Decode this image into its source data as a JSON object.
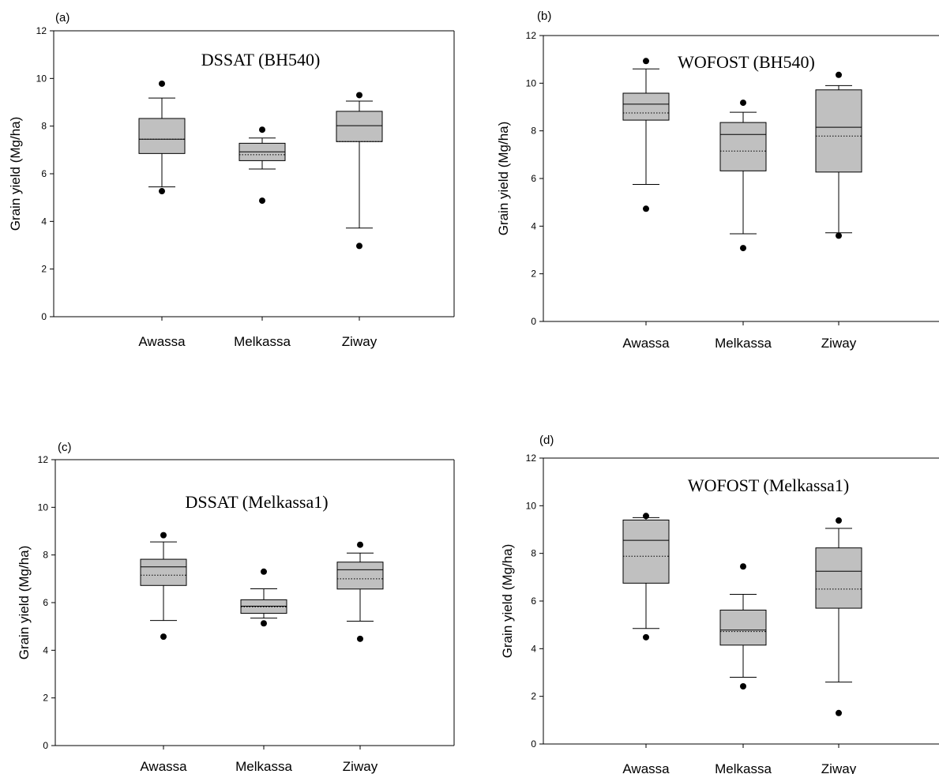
{
  "chart_data": [
    {
      "type": "box",
      "panel_label": "(a)",
      "title": "DSSAT (BH540)",
      "ylabel": "Grain yield (Mg/ha)",
      "ylim": [
        0,
        12
      ],
      "yticks": [
        0,
        2,
        4,
        6,
        8,
        10,
        12
      ],
      "frame": "full",
      "categories": [
        "Awassa",
        "Melkassa",
        "Ziway"
      ],
      "boxes": [
        {
          "whisker_low": 5.45,
          "q1": 6.85,
          "median": 7.45,
          "mean": 7.45,
          "q3": 8.32,
          "whisker_high": 9.18,
          "outliers": [
            5.27,
            9.78
          ]
        },
        {
          "whisker_low": 6.2,
          "q1": 6.55,
          "median": 6.92,
          "mean": 6.8,
          "q3": 7.28,
          "whisker_high": 7.5,
          "outliers": [
            4.87,
            7.85
          ]
        },
        {
          "whisker_low": 3.72,
          "q1": 7.35,
          "median": 8.02,
          "mean": 7.35,
          "q3": 8.62,
          "whisker_high": 9.05,
          "outliers": [
            2.97,
            9.3
          ]
        }
      ]
    },
    {
      "type": "box",
      "panel_label": "(b)",
      "title": "WOFOST (BH540)",
      "ylabel": "Grain yield (Mg/ha)",
      "ylim": [
        0,
        12
      ],
      "yticks": [
        0,
        2,
        4,
        6,
        8,
        10,
        12
      ],
      "frame": "left-bottom-top",
      "categories": [
        "Awassa",
        "Melkassa",
        "Ziway"
      ],
      "boxes": [
        {
          "whisker_low": 5.75,
          "q1": 8.45,
          "median": 9.12,
          "mean": 8.75,
          "q3": 9.58,
          "whisker_high": 10.6,
          "outliers": [
            4.73,
            10.93
          ]
        },
        {
          "whisker_low": 3.68,
          "q1": 6.32,
          "median": 7.85,
          "mean": 7.15,
          "q3": 8.35,
          "whisker_high": 8.78,
          "outliers": [
            3.08,
            9.18
          ]
        },
        {
          "whisker_low": 3.72,
          "q1": 6.27,
          "median": 8.15,
          "mean": 7.78,
          "q3": 9.72,
          "whisker_high": 9.9,
          "outliers": [
            3.6,
            10.35
          ]
        }
      ]
    },
    {
      "type": "box",
      "panel_label": "(c)",
      "title": "DSSAT (Melkassa1)",
      "ylabel": "Grain yield (Mg/ha)",
      "ylim": [
        0,
        12
      ],
      "yticks": [
        0,
        2,
        4,
        6,
        8,
        10,
        12
      ],
      "frame": "full",
      "categories": [
        "Awassa",
        "Melkassa",
        "Ziway"
      ],
      "boxes": [
        {
          "whisker_low": 5.25,
          "q1": 6.72,
          "median": 7.5,
          "mean": 7.15,
          "q3": 7.82,
          "whisker_high": 8.55,
          "outliers": [
            4.57,
            8.83
          ]
        },
        {
          "whisker_low": 5.35,
          "q1": 5.55,
          "median": 5.85,
          "mean": 5.82,
          "q3": 6.12,
          "whisker_high": 6.58,
          "outliers": [
            5.13,
            7.3
          ]
        },
        {
          "whisker_low": 5.22,
          "q1": 6.57,
          "median": 7.38,
          "mean": 7.0,
          "q3": 7.7,
          "whisker_high": 8.08,
          "outliers": [
            4.48,
            8.43
          ]
        }
      ]
    },
    {
      "type": "box",
      "panel_label": "(d)",
      "title": "WOFOST (Melkassa1)",
      "ylabel": "Grain yield (Mg/ha)",
      "ylim": [
        0,
        12
      ],
      "yticks": [
        0,
        2,
        4,
        6,
        8,
        10,
        12
      ],
      "frame": "left-bottom-top",
      "categories": [
        "Awassa",
        "Melkassa",
        "Ziway"
      ],
      "boxes": [
        {
          "whisker_low": 4.85,
          "q1": 6.75,
          "median": 8.55,
          "mean": 7.88,
          "q3": 9.4,
          "whisker_high": 9.5,
          "outliers": [
            4.48,
            9.57
          ]
        },
        {
          "whisker_low": 2.8,
          "q1": 4.15,
          "median": 4.78,
          "mean": 4.72,
          "q3": 5.62,
          "whisker_high": 6.28,
          "outliers": [
            2.42,
            7.45
          ]
        },
        {
          "whisker_low": 2.6,
          "q1": 5.7,
          "median": 7.25,
          "mean": 6.5,
          "q3": 8.23,
          "whisker_high": 9.05,
          "outliers": [
            1.3,
            9.38
          ]
        }
      ]
    }
  ],
  "colors": {
    "box_fill": "#c0c0c0",
    "line": "#000000"
  }
}
